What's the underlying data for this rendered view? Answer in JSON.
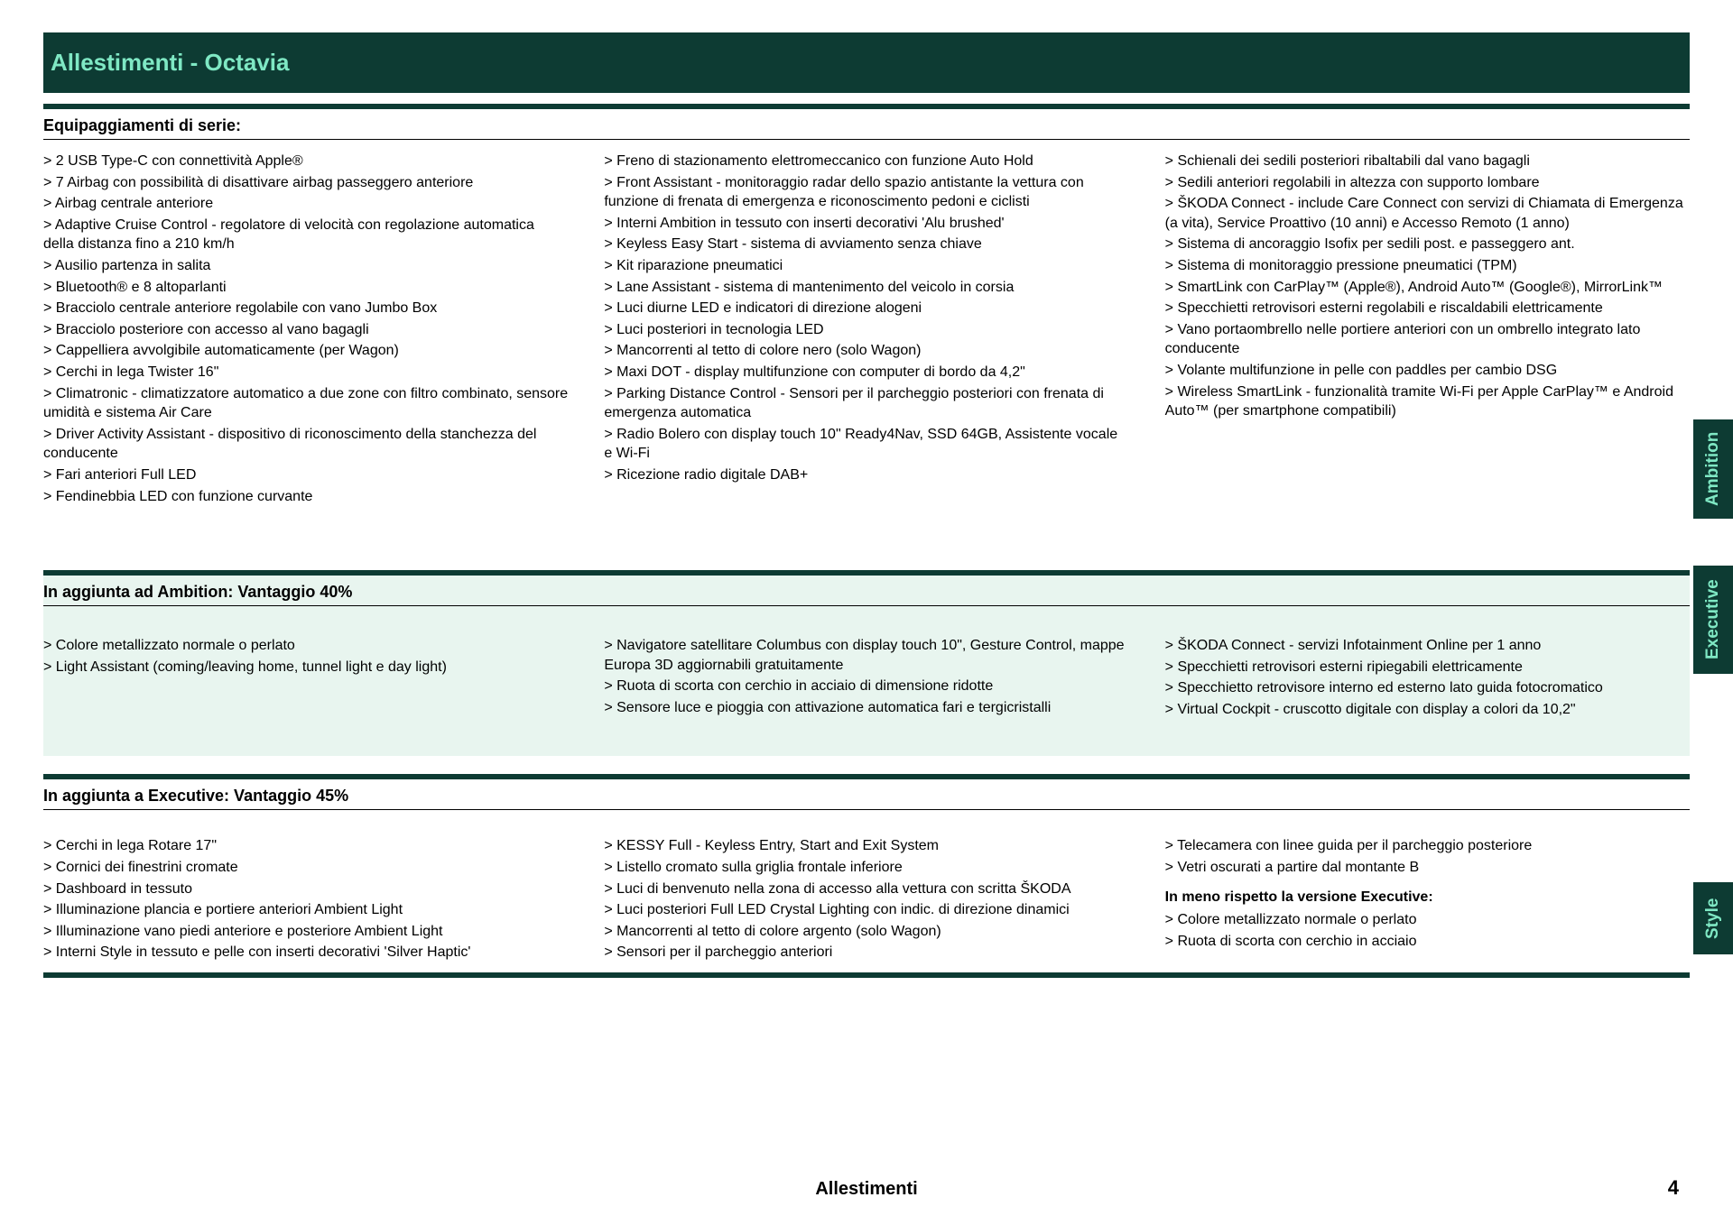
{
  "colors": {
    "header_bg": "#0d3b33",
    "header_text": "#7fe8c4",
    "executive_bg": "#e8f5ef",
    "rule": "#0d3b33",
    "body_text": "#000000"
  },
  "typography": {
    "header_fontsize": 26,
    "section_title_fontsize": 18,
    "body_fontsize": 16,
    "tab_fontsize": 19,
    "footer_fontsize": 20
  },
  "header": {
    "title": "Allestimenti - Octavia"
  },
  "footer": {
    "label": "Allestimenti",
    "page": "4"
  },
  "tabs": {
    "ambition": "Ambition",
    "executive": "Executive",
    "style": "Style"
  },
  "ambition": {
    "title": "Equipaggiamenti di serie:",
    "col1": [
      "> 2 USB Type-C con connettività Apple®",
      "> 7 Airbag con possibilità di disattivare airbag passeggero anteriore",
      "> Airbag centrale anteriore",
      "> Adaptive Cruise Control - regolatore di velocità con regolazione automatica della distanza fino a 210 km/h",
      "> Ausilio partenza in salita",
      "> Bluetooth® e 8 altoparlanti",
      "> Bracciolo centrale anteriore regolabile con vano Jumbo Box",
      "> Bracciolo posteriore con accesso al vano bagagli",
      "> Cappelliera avvolgibile automaticamente (per Wagon)",
      "> Cerchi in lega Twister 16\"",
      "> Climatronic - climatizzatore automatico a due zone con filtro combinato, sensore umidità e sistema Air Care",
      "> Driver Activity Assistant - dispositivo di riconoscimento della stanchezza del conducente",
      "> Fari anteriori Full LED",
      "> Fendinebbia LED con funzione curvante"
    ],
    "col2": [
      "> Freno di stazionamento elettromeccanico con funzione Auto Hold",
      "> Front Assistant - monitoraggio radar dello spazio antistante la vettura con funzione di frenata di emergenza e riconoscimento pedoni e ciclisti",
      "> Interni Ambition in tessuto con inserti decorativi 'Alu brushed'",
      "> Keyless Easy Start - sistema di avviamento senza chiave",
      "> Kit riparazione pneumatici",
      "> Lane Assistant - sistema di mantenimento del veicolo in corsia",
      "> Luci diurne LED e indicatori di direzione alogeni",
      "> Luci posteriori in tecnologia LED",
      "> Mancorrenti al tetto di colore nero (solo Wagon)",
      "> Maxi DOT - display multifunzione con computer di bordo da 4,2\"",
      "> Parking Distance Control - Sensori per il parcheggio posteriori con frenata di emergenza automatica",
      "> Radio Bolero con display touch 10\" Ready4Nav, SSD 64GB, Assistente vocale e Wi-Fi",
      "> Ricezione radio digitale DAB+"
    ],
    "col3": [
      "> Schienali dei sedili posteriori ribaltabili dal vano bagagli",
      "> Sedili anteriori regolabili in altezza con supporto lombare",
      "> ŠKODA Connect - include Care Connect con servizi di Chiamata di Emergenza (a vita), Service Proattivo (10 anni) e Accesso Remoto (1 anno)",
      "> Sistema di ancoraggio Isofix per sedili post. e passeggero ant.",
      "> Sistema di monitoraggio pressione pneumatici (TPM)",
      "> SmartLink con CarPlay™ (Apple®), Android Auto™ (Google®), MirrorLink™",
      "> Specchietti retrovisori esterni regolabili e riscaldabili elettricamente",
      "> Vano portaombrello nelle portiere anteriori con un ombrello integrato lato conducente",
      "> Volante multifunzione in pelle con paddles per cambio DSG",
      "> Wireless SmartLink - funzionalità tramite Wi-Fi per Apple CarPlay™ e Android Auto™ (per smartphone compatibili)"
    ]
  },
  "executive": {
    "title": "In aggiunta ad Ambition: Vantaggio 40%",
    "col1": [
      "> Colore metallizzato normale o perlato",
      "> Light Assistant (coming/leaving home, tunnel light e day light)"
    ],
    "col2": [
      "> Navigatore satellitare Columbus con display touch 10\", Gesture Control, mappe Europa 3D aggiornabili gratuitamente",
      "> Ruota di scorta con cerchio in acciaio di dimensione ridotte",
      "> Sensore luce e pioggia con attivazione automatica fari e tergicristalli"
    ],
    "col3": [
      "> ŠKODA Connect - servizi Infotainment Online per 1 anno",
      "> Specchietti retrovisori esterni ripiegabili elettricamente",
      "> Specchietto retrovisore interno ed esterno lato guida fotocromatico",
      "> Virtual Cockpit - cruscotto digitale con display a colori da 10,2\""
    ]
  },
  "style": {
    "title": "In aggiunta a Executive: Vantaggio 45%",
    "col1": [
      "> Cerchi in lega Rotare 17\"",
      "> Cornici dei finestrini cromate",
      "> Dashboard in tessuto",
      "> Illuminazione plancia e portiere anteriori Ambient Light",
      "> Illuminazione vano piedi anteriore e posteriore Ambient Light",
      "> Interni Style in tessuto e pelle con inserti decorativi 'Silver Haptic'"
    ],
    "col2": [
      "> KESSY Full - Keyless Entry, Start and Exit System",
      "> Listello cromato sulla griglia frontale inferiore",
      "> Luci di benvenuto nella zona di accesso alla vettura con scritta ŠKODA",
      "> Luci posteriori Full LED Crystal Lighting con indic. di direzione dinamici",
      "> Mancorrenti al tetto di colore argento (solo Wagon)",
      "> Sensori per il parcheggio anteriori"
    ],
    "col3_main": [
      "> Telecamera con linee guida per il parcheggio posteriore",
      "> Vetri oscurati a partire dal montante B"
    ],
    "col3_subhead": "In meno rispetto la versione Executive:",
    "col3_sub": [
      "> Colore metallizzato normale o perlato",
      "> Ruota di scorta con cerchio in acciaio"
    ]
  }
}
